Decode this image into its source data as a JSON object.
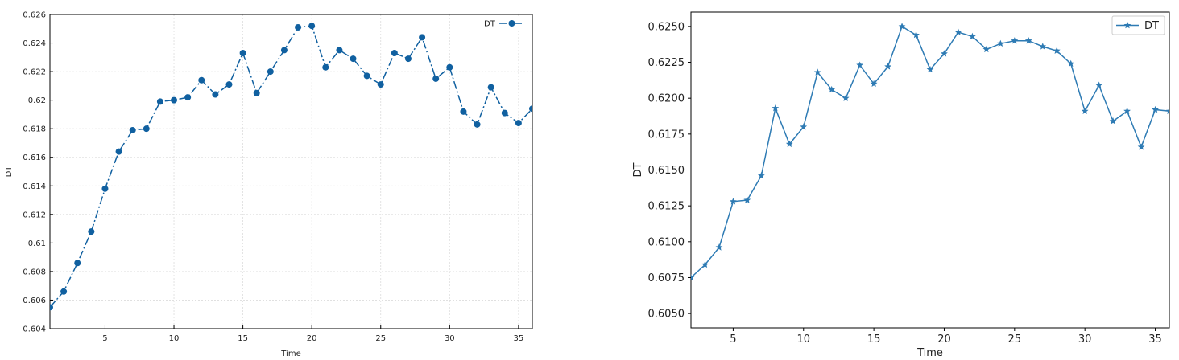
{
  "chart_data": [
    {
      "type": "line",
      "title": "",
      "xlabel": "Time",
      "ylabel": "DT",
      "xlim": [
        1,
        36
      ],
      "ylim": [
        0.604,
        0.626
      ],
      "xticks": [
        5,
        10,
        15,
        20,
        25,
        30,
        35
      ],
      "xtick_labels": [
        "5",
        "10",
        "15",
        "20",
        "25",
        "30",
        "35"
      ],
      "yticks": [
        0.604,
        0.606,
        0.608,
        0.61,
        0.612,
        0.614,
        0.616,
        0.618,
        0.62,
        0.622,
        0.624,
        0.626
      ],
      "ytick_labels": [
        "0.604",
        "0.606",
        "0.608",
        "0.61",
        "0.612",
        "0.614",
        "0.616",
        "0.618",
        "0.62",
        "0.622",
        "0.624",
        "0.626"
      ],
      "grid": true,
      "legend": "top-right",
      "line_style": "dash-dot",
      "marker": "circle",
      "color": "#1060a0",
      "series": [
        {
          "name": "DT",
          "x": [
            1,
            2,
            3,
            4,
            5,
            6,
            7,
            8,
            9,
            10,
            11,
            12,
            13,
            14,
            15,
            16,
            17,
            18,
            19,
            20,
            21,
            22,
            23,
            24,
            25,
            26,
            27,
            28,
            29,
            30,
            31,
            32,
            33,
            34,
            35,
            36
          ],
          "y": [
            0.6055,
            0.6066,
            0.6086,
            0.6108,
            0.6138,
            0.6164,
            0.6179,
            0.618,
            0.6199,
            0.62,
            0.6202,
            0.6214,
            0.6204,
            0.6211,
            0.6233,
            0.6205,
            0.622,
            0.6235,
            0.6251,
            0.6252,
            0.6223,
            0.6235,
            0.6229,
            0.6217,
            0.6211,
            0.6233,
            0.6229,
            0.6244,
            0.6215,
            0.6223,
            0.6192,
            0.6183,
            0.6209,
            0.6191,
            0.6184,
            0.6194
          ]
        }
      ]
    },
    {
      "type": "line",
      "title": "",
      "xlabel": "Time",
      "ylabel": "DT",
      "xlim": [
        2,
        36
      ],
      "ylim": [
        0.604,
        0.626
      ],
      "xticks": [
        5,
        10,
        15,
        20,
        25,
        30,
        35
      ],
      "xtick_labels": [
        "5",
        "10",
        "15",
        "20",
        "25",
        "30",
        "35"
      ],
      "yticks": [
        0.605,
        0.6075,
        0.61,
        0.6125,
        0.615,
        0.6175,
        0.62,
        0.6225,
        0.625
      ],
      "ytick_labels": [
        "0.6050",
        "0.6075",
        "0.6100",
        "0.6125",
        "0.6150",
        "0.6175",
        "0.6200",
        "0.6225",
        "0.6250"
      ],
      "grid": false,
      "legend": "top-right",
      "line_style": "solid",
      "marker": "star",
      "color": "#2e7bb4",
      "series": [
        {
          "name": "DT",
          "x": [
            2,
            3,
            4,
            5,
            6,
            7,
            8,
            9,
            10,
            11,
            12,
            13,
            14,
            15,
            16,
            17,
            18,
            19,
            20,
            21,
            22,
            23,
            24,
            25,
            26,
            27,
            28,
            29,
            30,
            31,
            32,
            33,
            34,
            35,
            36
          ],
          "y": [
            0.6075,
            0.6084,
            0.6096,
            0.6128,
            0.6129,
            0.6146,
            0.6193,
            0.6168,
            0.618,
            0.6218,
            0.6206,
            0.62,
            0.6223,
            0.621,
            0.6222,
            0.625,
            0.6244,
            0.622,
            0.6231,
            0.6246,
            0.6243,
            0.6234,
            0.6238,
            0.624,
            0.624,
            0.6236,
            0.6233,
            0.6224,
            0.6191,
            0.6209,
            0.6184,
            0.6191,
            0.6166,
            0.6192,
            0.6191
          ]
        }
      ]
    }
  ]
}
